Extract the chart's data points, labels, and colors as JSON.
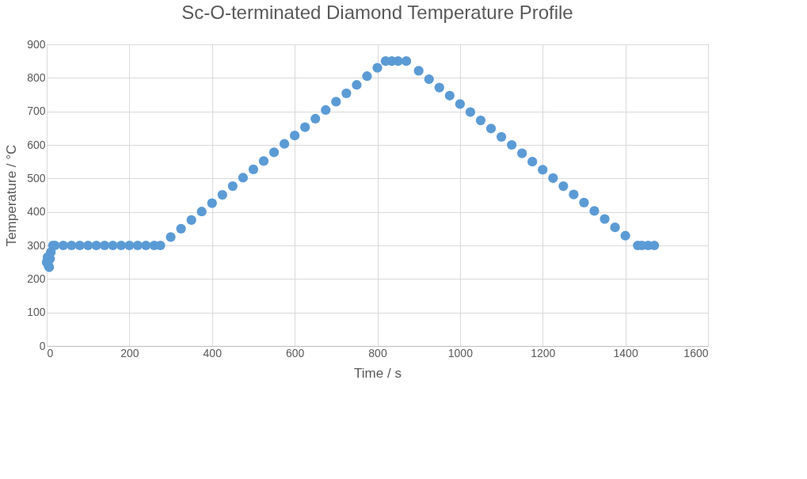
{
  "chart_data": {
    "type": "scatter",
    "title": "Sc-O-terminated Diamond Temperature Profile",
    "xlabel": "Time / s",
    "ylabel": "Temperature / °C",
    "xlim": [
      0,
      1600
    ],
    "xticks": [
      0,
      200,
      400,
      600,
      800,
      1000,
      1200,
      1400,
      1600
    ],
    "ylim": [
      0,
      900
    ],
    "yticks": [
      0,
      100,
      200,
      300,
      400,
      500,
      600,
      700,
      800,
      900
    ],
    "grid": true,
    "marker": "circle",
    "series": [
      {
        "color": "#5b9bd5",
        "x": [
          0,
          2,
          4,
          6,
          8,
          10,
          15,
          20,
          40,
          60,
          80,
          100,
          120,
          140,
          160,
          180,
          200,
          220,
          240,
          260,
          275,
          300,
          325,
          350,
          375,
          400,
          425,
          450,
          475,
          500,
          525,
          550,
          575,
          600,
          625,
          650,
          675,
          700,
          725,
          750,
          775,
          800,
          820,
          835,
          850,
          870,
          900,
          925,
          950,
          975,
          1000,
          1025,
          1050,
          1075,
          1100,
          1125,
          1150,
          1175,
          1200,
          1225,
          1250,
          1275,
          1300,
          1325,
          1350,
          1375,
          1400,
          1430,
          1440,
          1455,
          1470
        ],
        "values": [
          250,
          265,
          240,
          235,
          260,
          280,
          300,
          300,
          300,
          300,
          300,
          300,
          300,
          300,
          300,
          300,
          300,
          300,
          300,
          300,
          300,
          325,
          350,
          376,
          401,
          426,
          451,
          477,
          502,
          527,
          552,
          578,
          603,
          628,
          653,
          678,
          704,
          729,
          754,
          779,
          805,
          830,
          850,
          850,
          850,
          850,
          821,
          796,
          771,
          747,
          722,
          698,
          673,
          649,
          624,
          600,
          575,
          550,
          526,
          501,
          477,
          452,
          428,
          403,
          379,
          354,
          329,
          300,
          300,
          300,
          300
        ]
      }
    ]
  }
}
